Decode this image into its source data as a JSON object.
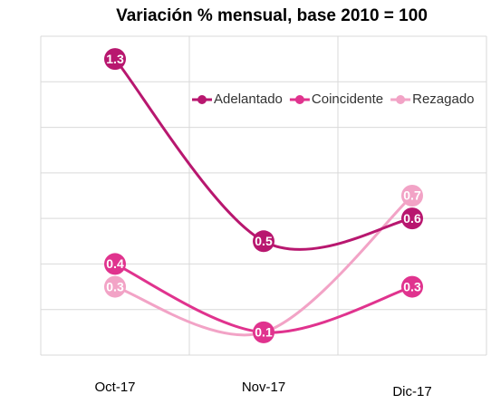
{
  "chart_data": {
    "type": "line",
    "title": "Variación % mensual, base 2010 = 100",
    "categories": [
      "Oct-17",
      "Nov-17",
      "Dic-17"
    ],
    "series": [
      {
        "name": "Adelantado",
        "color": "#b8176f",
        "values": [
          1.3,
          0.5,
          0.6
        ]
      },
      {
        "name": "Coincidente",
        "color": "#e0338e",
        "values": [
          0.4,
          0.1,
          0.3
        ]
      },
      {
        "name": "Rezagado",
        "color": "#f2a3c6",
        "values": [
          0.3,
          0.1,
          0.7
        ]
      }
    ],
    "ylim": [
      0,
      1.4
    ],
    "yticks": [
      0,
      0.2,
      0.4,
      0.6,
      0.8,
      1,
      1.2,
      1.4
    ],
    "grid": true,
    "legend": "top-right"
  }
}
